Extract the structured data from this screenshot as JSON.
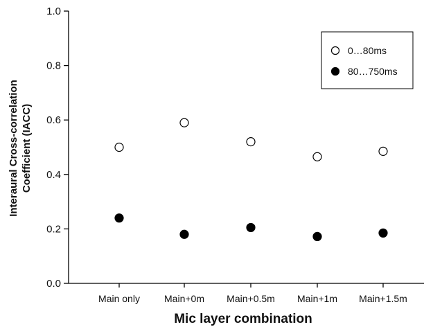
{
  "chart_data": {
    "type": "scatter",
    "categories": [
      "Main only",
      "Main+0m",
      "Main+0.5m",
      "Main+1m",
      "Main+1.5m"
    ],
    "series": [
      {
        "name": "0…80ms",
        "marker": "open-circle",
        "values": [
          0.5,
          0.59,
          0.52,
          0.465,
          0.485
        ]
      },
      {
        "name": "80…750ms",
        "marker": "filled-circle",
        "values": [
          0.24,
          0.18,
          0.205,
          0.172,
          0.185
        ]
      }
    ],
    "xlabel": "Mic layer combination",
    "ylabel": "Interaural Cross-correlation Coefficient (IACC)",
    "ylim": [
      0.0,
      1.0
    ],
    "yticks": [
      "0.0",
      "0.2",
      "0.4",
      "0.6",
      "0.8",
      "1.0"
    ],
    "grid": false,
    "legend_position": "top-right",
    "colors": {
      "axis": "#000000",
      "marker_fill": "#000000",
      "marker_open_fill": "#ffffff"
    }
  }
}
